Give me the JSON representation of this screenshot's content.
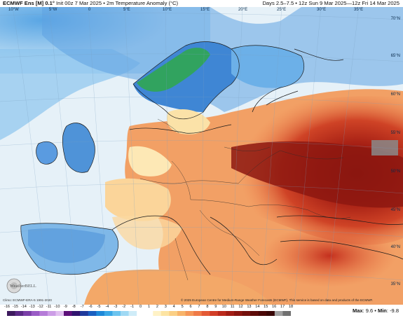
{
  "header": {
    "model": "ECMWF Ens [M] 0.1°",
    "init": "Init 00z 7 Mar 2025",
    "separator": "•",
    "variable": "2m Temperature Anomaly (°C)",
    "valid": "Days 2.5–7.5 • 12z Sun 9 Mar 2025—12z Fri 14 Mar 2025"
  },
  "map": {
    "lon_labels": [
      "10°W",
      "5°W",
      "0",
      "5°E",
      "10°E",
      "15°E",
      "20°E",
      "25°E",
      "30°E",
      "35°E"
    ],
    "lat_labels": [
      "70°N",
      "65°N",
      "60°N",
      "55°N",
      "50°N",
      "45°N",
      "40°N",
      "35°N"
    ],
    "credits": {
      "climo": "Climo: ECMWF-ERA-5 1991-2020",
      "copyright": "© 2025 European Centre for Medium-Range Weather Forecasts (ECMWF). This service is based on data and products of the ECMWF."
    },
    "logo": "WeatherBELL"
  },
  "legend": {
    "ticks": [
      "-16",
      "-15",
      "-14",
      "-13",
      "-12",
      "-11",
      "-10",
      "-9",
      "-8",
      "-7",
      "-6",
      "-5",
      "-4",
      "-3",
      "-2",
      "-1",
      "0",
      "1",
      "2",
      "3",
      "4",
      "5",
      "6",
      "7",
      "8",
      "9",
      "10",
      "11",
      "12",
      "13",
      "14",
      "15",
      "16",
      "17",
      "18"
    ],
    "colors": [
      "#3d1a5e",
      "#5b2a86",
      "#7a3fa8",
      "#9a5cc6",
      "#b57bd8",
      "#cc9de6",
      "#e1c0f0",
      "#5d0f7a",
      "#30146e",
      "#1f3a9c",
      "#1a5fc0",
      "#1e88d8",
      "#3aa8e6",
      "#6cc4ef",
      "#9fd9f4",
      "#cfecf8",
      "#ffffff",
      "#ffffff",
      "#fff2c6",
      "#fde4a3",
      "#fbcf84",
      "#f8b46a",
      "#f59758",
      "#ef7a47",
      "#e35a35",
      "#d23e27",
      "#bb2a1c",
      "#a21d14",
      "#8a150f",
      "#74100c",
      "#5e0c09",
      "#4a0807",
      "#380605",
      "#a0a0a0",
      "#707070"
    ],
    "max_label": "Max",
    "max_value": "9.6",
    "min_label": "Min",
    "min_value": "-9.8"
  },
  "colors": {
    "cold_deep": "#1e5fc0",
    "cold": "#6aaee6",
    "cool": "#cfe5f5",
    "neutral": "#eef4f8",
    "warm_light": "#fde6a8",
    "warm": "#f4a05c",
    "hot": "#d84a2c",
    "very_hot": "#9a1c12",
    "extreme": "#6e0f0a",
    "green_anomaly": "#2fa84a"
  }
}
